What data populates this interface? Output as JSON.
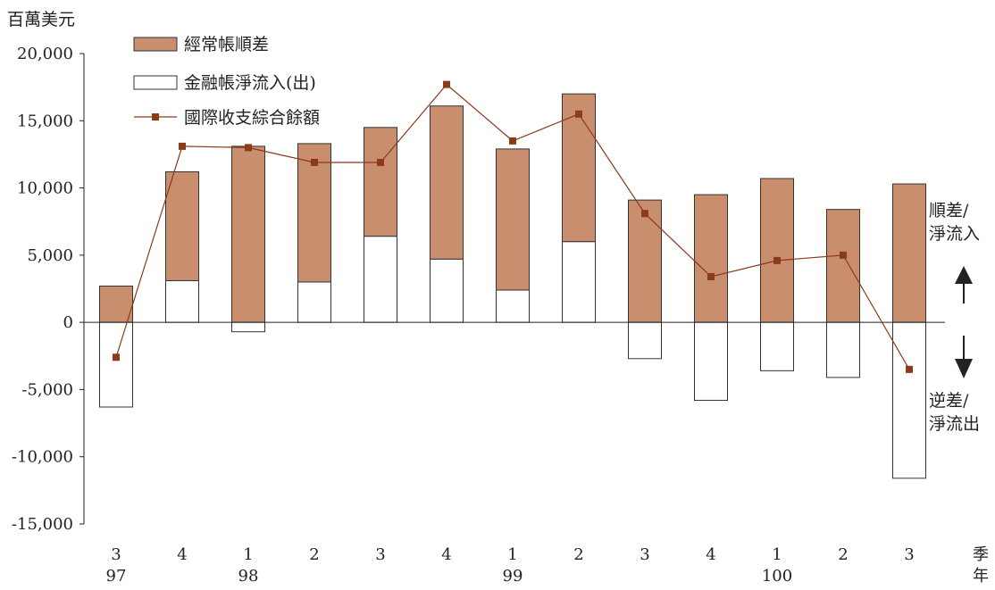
{
  "chart_data": {
    "type": "bar",
    "unit_label": "百萬美元",
    "x_axis_label_quarter": "季",
    "x_axis_label_year": "年",
    "quarters": [
      "3",
      "4",
      "1",
      "2",
      "3",
      "4",
      "1",
      "2",
      "3",
      "4",
      "1",
      "2",
      "3"
    ],
    "years": [
      "97",
      "",
      "98",
      "",
      "",
      "",
      "99",
      "",
      "",
      "",
      "100",
      "",
      ""
    ],
    "ylim": [
      -15000,
      20000
    ],
    "y_ticks": [
      20000,
      15000,
      10000,
      5000,
      0,
      -5000,
      -10000,
      -15000
    ],
    "y_tick_labels": [
      "20,000",
      "15,000",
      "10,000",
      "5,000",
      "0",
      "-5,000",
      "-10,000",
      "-15,000"
    ],
    "series": [
      {
        "name": "經常帳順差",
        "type": "bar",
        "color": "#c98e6e",
        "values": [
          2700,
          8100,
          13100,
          10300,
          8100,
          11400,
          10500,
          11000,
          9100,
          9500,
          10700,
          8400,
          10300
        ]
      },
      {
        "name": "金融帳淨流入(出)",
        "type": "bar",
        "color": "#ffffff",
        "values": [
          -6300,
          3100,
          -700,
          3000,
          6400,
          4700,
          2400,
          6000,
          -2700,
          -5800,
          -3600,
          -4100,
          -11600
        ]
      },
      {
        "name": "國際收支綜合餘額",
        "type": "line",
        "color": "#8b3a1a",
        "values": [
          -2600,
          13100,
          13000,
          11900,
          11900,
          17700,
          13500,
          15500,
          8100,
          3400,
          4600,
          5000,
          -3500
        ]
      }
    ],
    "annotations": {
      "surplus_line1": "順差/",
      "surplus_line2": "淨流入",
      "deficit_line1": "逆差/",
      "deficit_line2": "淨流出"
    },
    "grid": false,
    "legend_position": "top-left"
  }
}
